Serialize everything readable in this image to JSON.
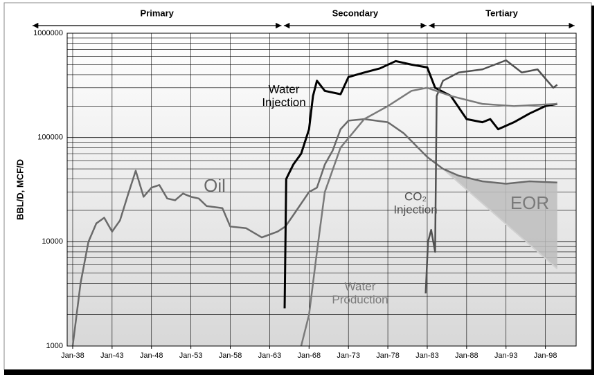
{
  "chart_data": {
    "type": "line",
    "ylabel": "BBL/D, MCF/D",
    "log_y": true,
    "ylim": [
      1000,
      1000000
    ],
    "yticks": [
      1000,
      10000,
      100000,
      1000000
    ],
    "yminorticks": [
      2000,
      3000,
      4000,
      5000,
      6000,
      7000,
      8000,
      9000,
      20000,
      30000,
      40000,
      50000,
      60000,
      70000,
      80000,
      90000,
      200000,
      300000,
      400000,
      500000,
      600000,
      700000,
      800000,
      900000
    ],
    "xlim": [
      1937.3,
      2001.9
    ],
    "xticks": [
      {
        "value": 1938,
        "label": "Jan-38"
      },
      {
        "value": 1943,
        "label": "Jan-43"
      },
      {
        "value": 1948,
        "label": "Jan-48"
      },
      {
        "value": 1953,
        "label": "Jan-53"
      },
      {
        "value": 1958,
        "label": "Jan-58"
      },
      {
        "value": 1963,
        "label": "Jan-63"
      },
      {
        "value": 1968,
        "label": "Jan-68"
      },
      {
        "value": 1973,
        "label": "Jan-73"
      },
      {
        "value": 1978,
        "label": "Jan-78"
      },
      {
        "value": 1983,
        "label": "Jan-83"
      },
      {
        "value": 1988,
        "label": "Jan-88"
      },
      {
        "value": 1993,
        "label": "Jan-93"
      },
      {
        "value": 1998,
        "label": "Jan-98"
      }
    ],
    "grid": true,
    "phases": [
      {
        "name": "Primary",
        "start": 1932.9,
        "end": 1964.5
      },
      {
        "name": "Secondary",
        "start": 1964.8,
        "end": 1982.9
      },
      {
        "name": "Tertiary",
        "start": 1983.2,
        "end": 2001.7
      }
    ],
    "series": [
      {
        "name": "Oil",
        "color": "#6a6a6a",
        "x": [
          1938,
          1939,
          1940,
          1941,
          1942,
          1943,
          1944,
          1945,
          1946,
          1947,
          1948,
          1949,
          1950,
          1951,
          1952,
          1953,
          1954,
          1955,
          1957,
          1958,
          1960,
          1962,
          1964,
          1965,
          1966,
          1968,
          1969,
          1970,
          1971,
          1972,
          1973,
          1975,
          1978,
          1980,
          1983,
          1985,
          1987,
          1990,
          1993,
          1996,
          1999.5
        ],
        "values": [
          1000,
          4000,
          10000,
          15000,
          17000,
          12500,
          16000,
          28000,
          48000,
          27000,
          33000,
          35000,
          26000,
          25000,
          29000,
          27000,
          26000,
          22000,
          21000,
          14000,
          13500,
          11000,
          12500,
          14000,
          18000,
          30000,
          33000,
          55000,
          75000,
          120000,
          145000,
          150000,
          140000,
          110000,
          65000,
          50000,
          43000,
          38000,
          36000,
          38000,
          37000
        ]
      },
      {
        "name": "Water Injection",
        "color": "#000000",
        "x": [
          1964.9,
          1965.1,
          1966,
          1967,
          1968,
          1968.5,
          1969,
          1970,
          1972,
          1973,
          1975,
          1977,
          1979,
          1981,
          1983,
          1984,
          1986,
          1988,
          1990,
          1991,
          1992,
          1994,
          1996,
          1998,
          1999.5
        ],
        "values": [
          2300,
          40000,
          55000,
          70000,
          120000,
          250000,
          350000,
          280000,
          260000,
          380000,
          420000,
          460000,
          540000,
          500000,
          470000,
          300000,
          250000,
          150000,
          140000,
          150000,
          120000,
          140000,
          170000,
          200000,
          210000
        ]
      },
      {
        "name": "CO₂ Injection",
        "color": "#505050",
        "x": [
          1982.8,
          1983.1,
          1983.5,
          1984,
          1984.2,
          1985,
          1987,
          1990,
          1993,
          1995,
          1997,
          1999,
          1999.5
        ],
        "values": [
          3200,
          10000,
          13000,
          8000,
          250000,
          350000,
          420000,
          450000,
          550000,
          420000,
          450000,
          300000,
          320000
        ]
      },
      {
        "name": "Water Production",
        "color": "#7a7a7a",
        "x": [
          1967,
          1968,
          1969,
          1970,
          1972,
          1975,
          1978,
          1981,
          1983,
          1986,
          1990,
          1994,
          1999.5
        ],
        "values": [
          1000,
          2000,
          8000,
          30000,
          80000,
          150000,
          200000,
          280000,
          300000,
          250000,
          210000,
          200000,
          210000
        ]
      }
    ],
    "eor": {
      "label": "EOR",
      "x": [
        1985,
        1999.5
      ],
      "values": [
        50000,
        5500
      ]
    }
  }
}
